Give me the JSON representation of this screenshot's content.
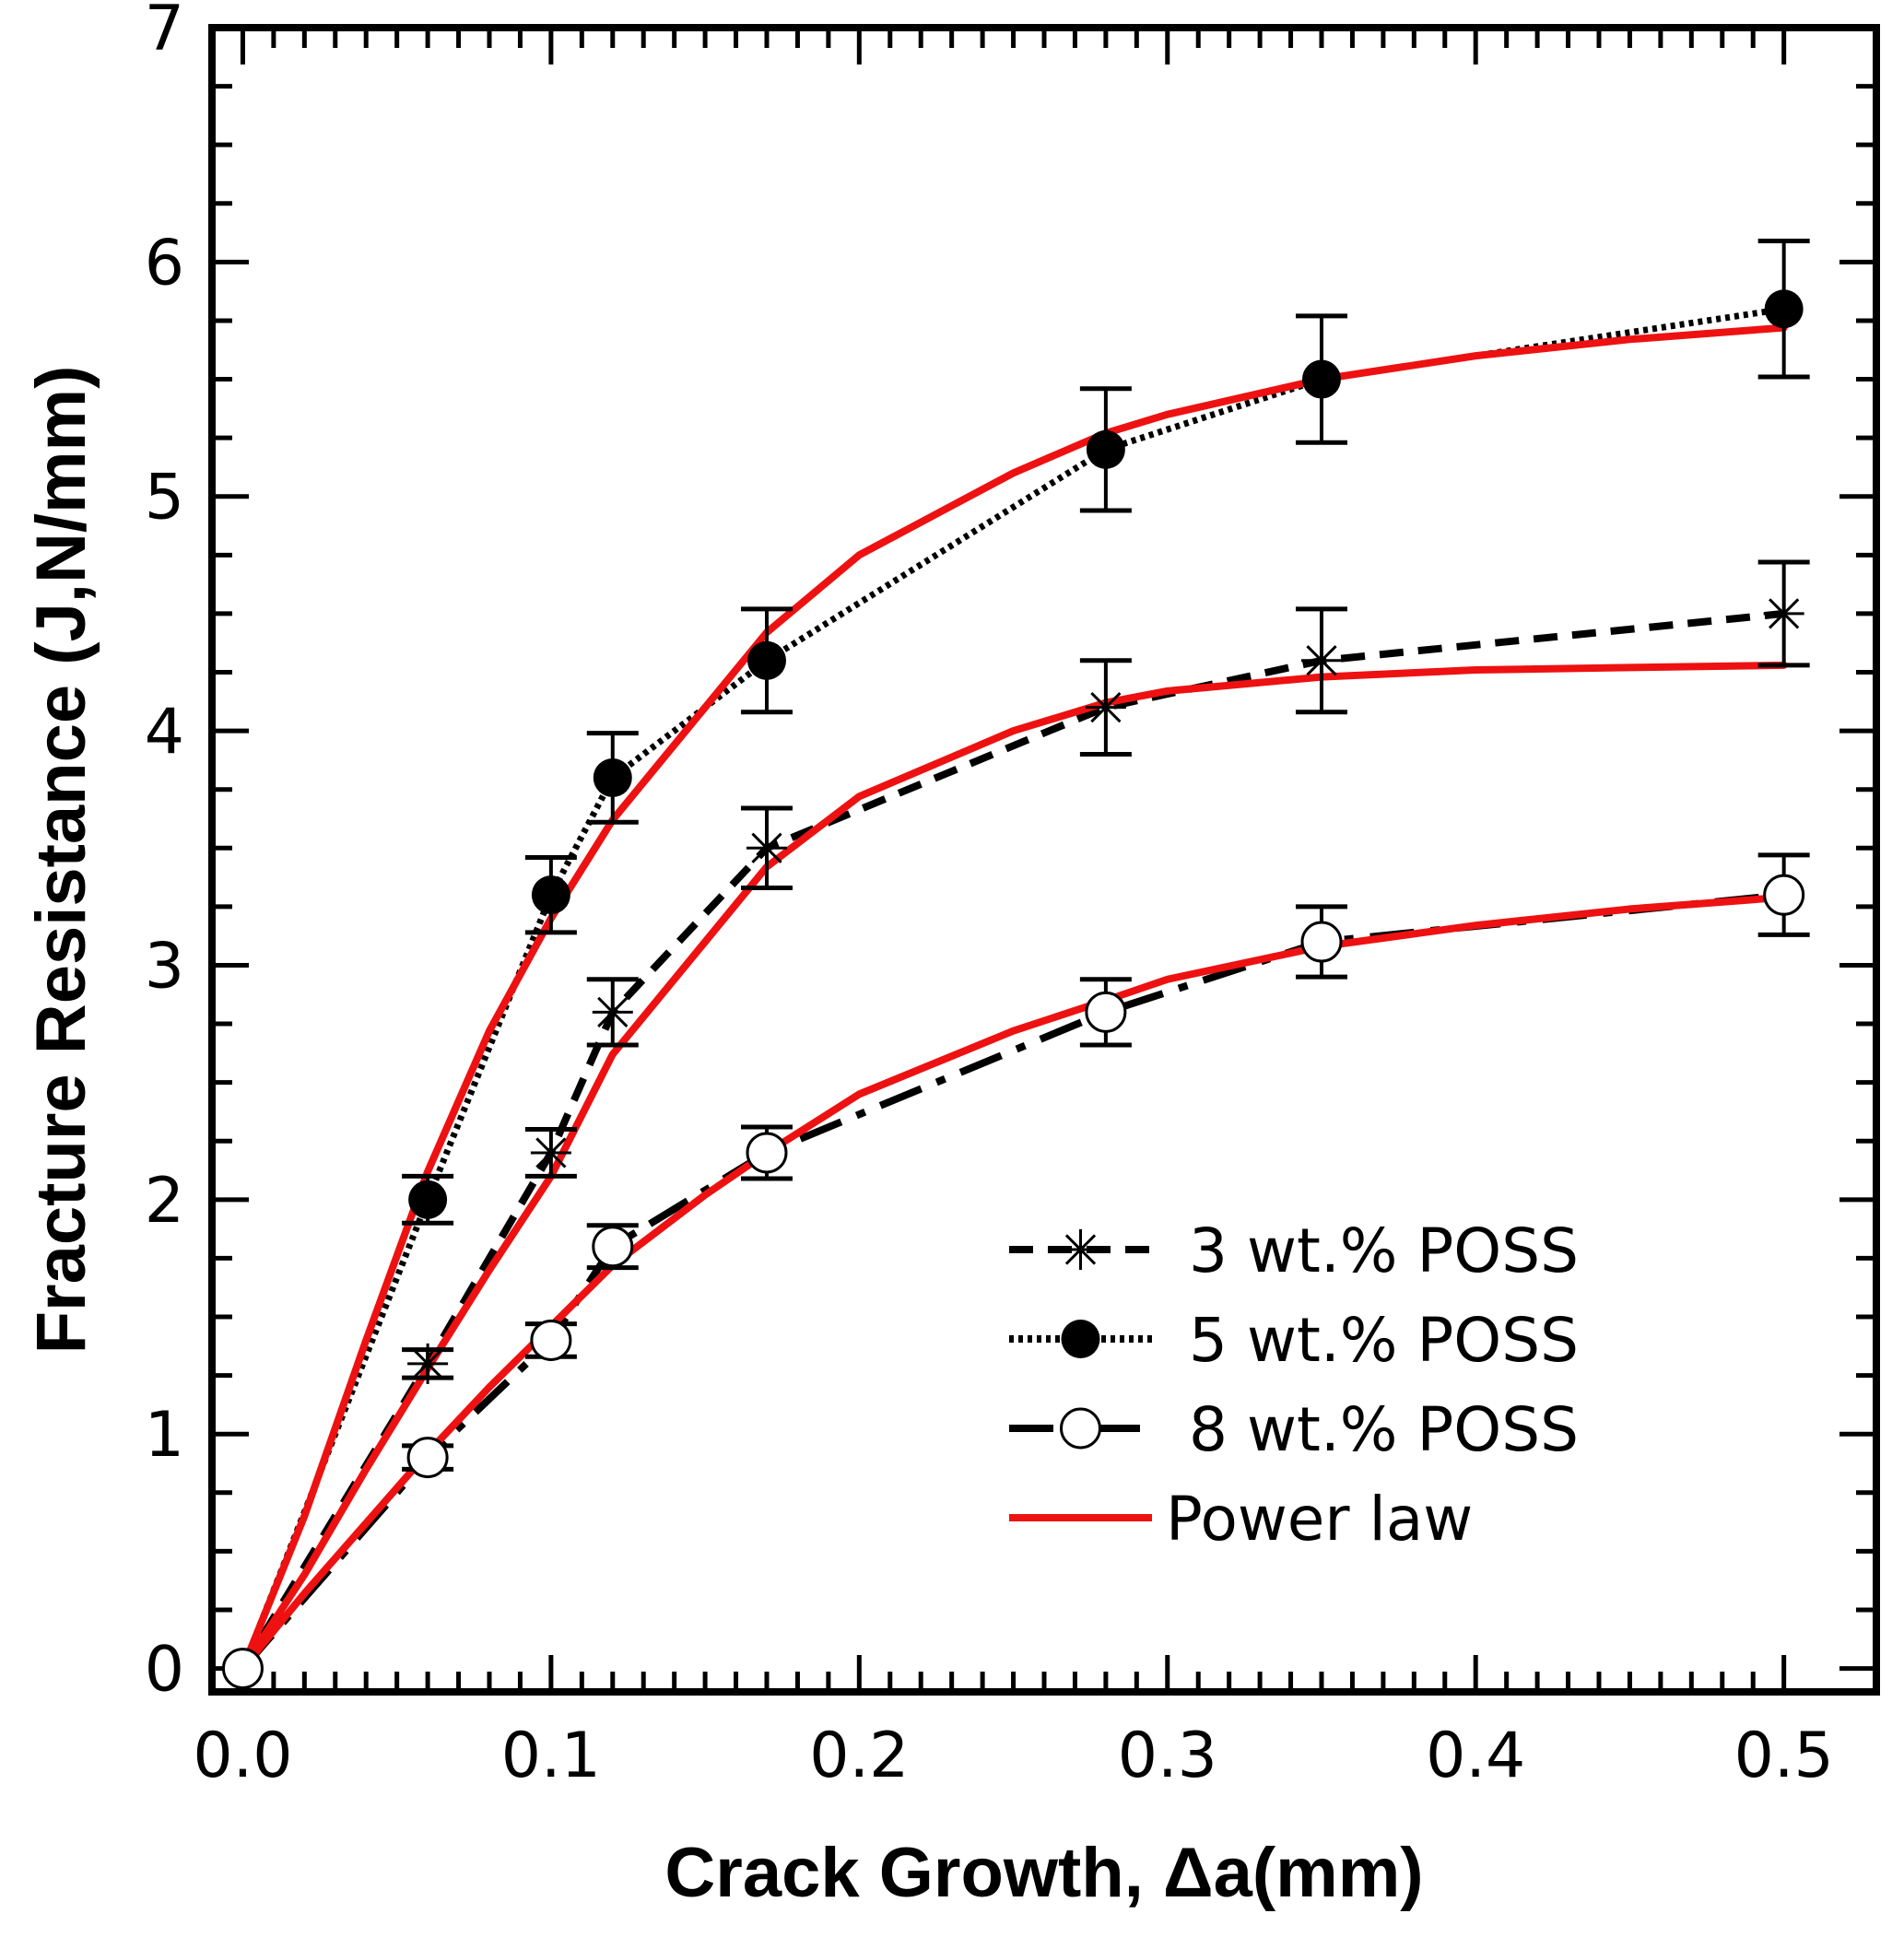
{
  "chart_data": {
    "type": "line",
    "title": "",
    "xlabel": "Crack Growth, Δa(mm)",
    "ylabel": "Fracture Resistance (J,N/mm)",
    "xlim": [
      -0.01,
      0.53
    ],
    "ylim": [
      -0.1,
      7
    ],
    "xticks": [
      0.0,
      0.1,
      0.2,
      0.3,
      0.4,
      0.5
    ],
    "xtick_labels": [
      "0.0",
      "0.1",
      "0.2",
      "0.3",
      "0.4",
      "0.5"
    ],
    "yticks": [
      0,
      1,
      2,
      3,
      4,
      5,
      6,
      7
    ],
    "ytick_labels": [
      "0",
      "1",
      "2",
      "3",
      "4",
      "5",
      "6",
      "7"
    ],
    "grid": false,
    "legend_position": "bottom-right",
    "colors": {
      "data": "#000000",
      "fit": "#ee1111"
    },
    "series": [
      {
        "name": "3 wt.% POSS",
        "line": "dashed",
        "marker": "asterisk-icon",
        "x": [
          0,
          0.06,
          0.1,
          0.12,
          0.17,
          0.28,
          0.35,
          0.5
        ],
        "y": [
          0,
          1.3,
          2.2,
          2.8,
          3.5,
          4.1,
          4.3,
          4.5
        ],
        "err": [
          0,
          0.06,
          0.1,
          0.14,
          0.17,
          0.2,
          0.22,
          0.22
        ]
      },
      {
        "name": "5 wt.% POSS",
        "line": "dotted",
        "marker": "filled-circle-icon",
        "x": [
          0,
          0.06,
          0.1,
          0.12,
          0.17,
          0.28,
          0.35,
          0.5
        ],
        "y": [
          0,
          2.0,
          3.3,
          3.8,
          4.3,
          5.2,
          5.5,
          5.8
        ],
        "err": [
          0,
          0.1,
          0.16,
          0.19,
          0.22,
          0.26,
          0.27,
          0.29
        ]
      },
      {
        "name": "8 wt.% POSS",
        "line": "long-dash-dot",
        "marker": "open-circle-icon",
        "x": [
          0,
          0.06,
          0.1,
          0.12,
          0.17,
          0.28,
          0.35,
          0.5
        ],
        "y": [
          0,
          0.9,
          1.4,
          1.8,
          2.2,
          2.8,
          3.1,
          3.3
        ],
        "err": [
          0,
          0.05,
          0.07,
          0.09,
          0.11,
          0.14,
          0.15,
          0.17
        ]
      }
    ],
    "fits": [
      {
        "name": "Power law",
        "for": "3 wt.% POSS",
        "x": [
          0,
          0.02,
          0.04,
          0.06,
          0.08,
          0.1,
          0.12,
          0.15,
          0.17,
          0.2,
          0.25,
          0.28,
          0.3,
          0.35,
          0.4,
          0.45,
          0.5
        ],
        "y": [
          0,
          0.4,
          0.85,
          1.28,
          1.7,
          2.1,
          2.62,
          3.1,
          3.42,
          3.72,
          4.0,
          4.12,
          4.17,
          4.23,
          4.26,
          4.27,
          4.28
        ]
      },
      {
        "name": "Power law",
        "for": "5 wt.% POSS",
        "x": [
          0,
          0.02,
          0.04,
          0.06,
          0.08,
          0.1,
          0.12,
          0.15,
          0.17,
          0.2,
          0.25,
          0.28,
          0.3,
          0.35,
          0.4,
          0.45,
          0.5
        ],
        "y": [
          0,
          0.65,
          1.4,
          2.12,
          2.72,
          3.2,
          3.62,
          4.1,
          4.42,
          4.75,
          5.1,
          5.27,
          5.35,
          5.5,
          5.6,
          5.67,
          5.72
        ]
      },
      {
        "name": "Power law",
        "for": "8 wt.% POSS",
        "x": [
          0,
          0.02,
          0.04,
          0.06,
          0.08,
          0.1,
          0.12,
          0.15,
          0.17,
          0.2,
          0.25,
          0.28,
          0.3,
          0.35,
          0.4,
          0.45,
          0.5
        ],
        "y": [
          0,
          0.32,
          0.62,
          0.92,
          1.2,
          1.46,
          1.72,
          2.02,
          2.2,
          2.45,
          2.72,
          2.85,
          2.94,
          3.08,
          3.17,
          3.24,
          3.29
        ]
      }
    ],
    "legend": [
      {
        "label": "3 wt.% POSS",
        "line": "dashed",
        "marker": "asterisk-icon",
        "color": "#000000"
      },
      {
        "label": "5 wt.% POSS",
        "line": "dotted",
        "marker": "filled-circle-icon",
        "color": "#000000"
      },
      {
        "label": "8 wt.% POSS",
        "line": "long-dash-dot",
        "marker": "open-circle-icon",
        "color": "#000000"
      },
      {
        "label": "Power law",
        "line": "solid",
        "marker": "",
        "color": "#ee1111"
      }
    ]
  }
}
